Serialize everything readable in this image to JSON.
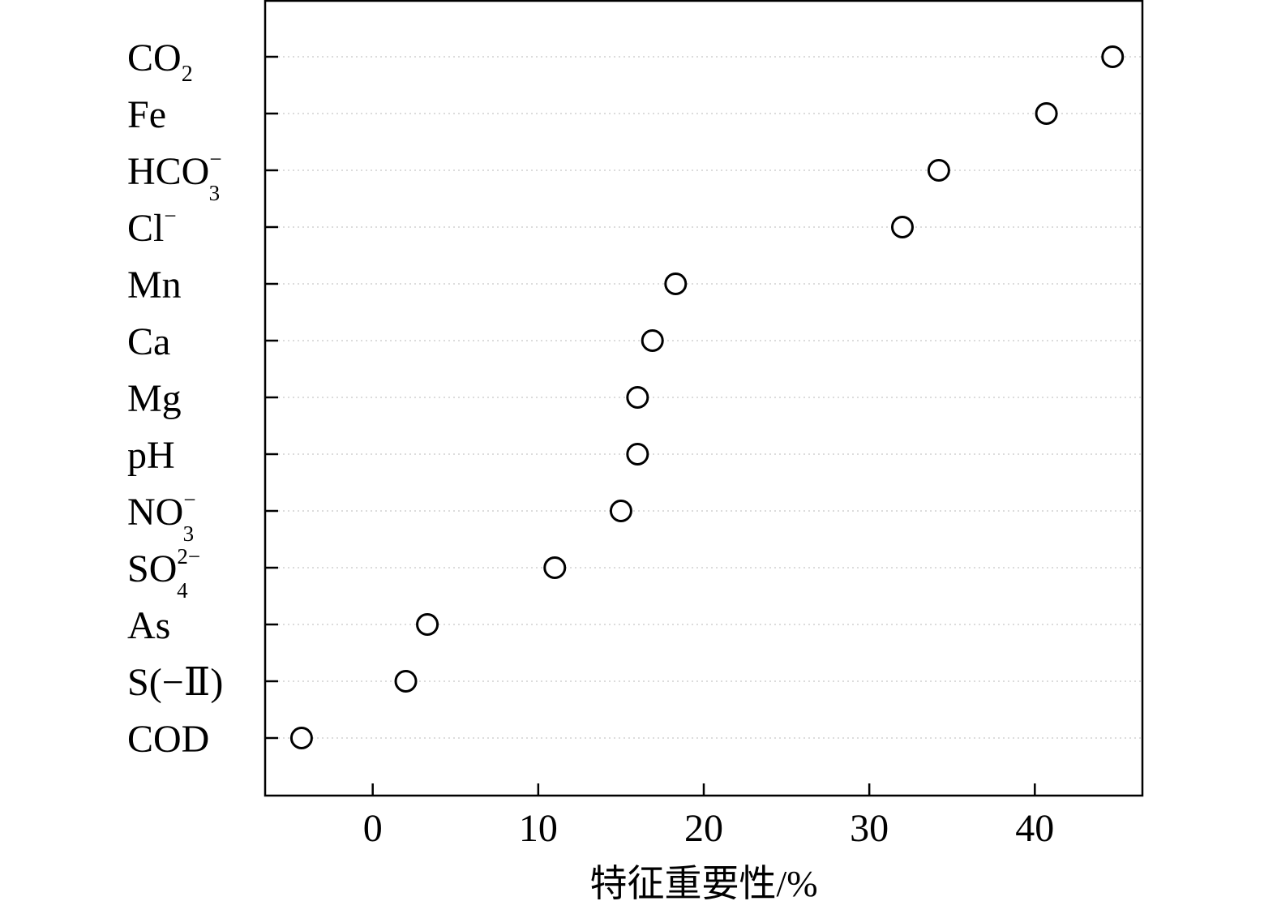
{
  "chart_data": {
    "type": "scatter",
    "title": "",
    "xlabel": "特征重要性/%",
    "ylabel": "",
    "xlim": [
      -6.5,
      46.5
    ],
    "xticks": [
      0,
      10,
      20,
      30,
      40
    ],
    "xtick_labels": [
      "0",
      "10",
      "20",
      "30",
      "40"
    ],
    "grid": "horizontal dotted",
    "legend": "none",
    "marker": "open-circle",
    "categories": [
      {
        "base": "CO",
        "sub": "2",
        "sup": "",
        "suffix": ""
      },
      {
        "base": "Fe",
        "sub": "",
        "sup": "",
        "suffix": ""
      },
      {
        "base": "HCO",
        "sub": "3",
        "sup": "−",
        "suffix": ""
      },
      {
        "base": "Cl",
        "sub": "",
        "sup": "−",
        "suffix": ""
      },
      {
        "base": "Mn",
        "sub": "",
        "sup": "",
        "suffix": ""
      },
      {
        "base": "Ca",
        "sub": "",
        "sup": "",
        "suffix": ""
      },
      {
        "base": "Mg",
        "sub": "",
        "sup": "",
        "suffix": ""
      },
      {
        "base": "pH",
        "sub": "",
        "sup": "",
        "suffix": ""
      },
      {
        "base": "NO",
        "sub": "3",
        "sup": "−",
        "suffix": ""
      },
      {
        "base": "SO",
        "sub": "4",
        "sup": "2−",
        "suffix": ""
      },
      {
        "base": "As",
        "sub": "",
        "sup": "",
        "suffix": ""
      },
      {
        "base": "S(−Ⅱ)",
        "sub": "",
        "sup": "",
        "suffix": ""
      },
      {
        "base": "COD",
        "sub": "",
        "sup": "",
        "suffix": ""
      }
    ],
    "values": [
      44.7,
      40.7,
      34.2,
      32.0,
      18.3,
      16.9,
      16.0,
      16.0,
      15.0,
      11.0,
      3.3,
      2.0,
      -4.3
    ]
  }
}
